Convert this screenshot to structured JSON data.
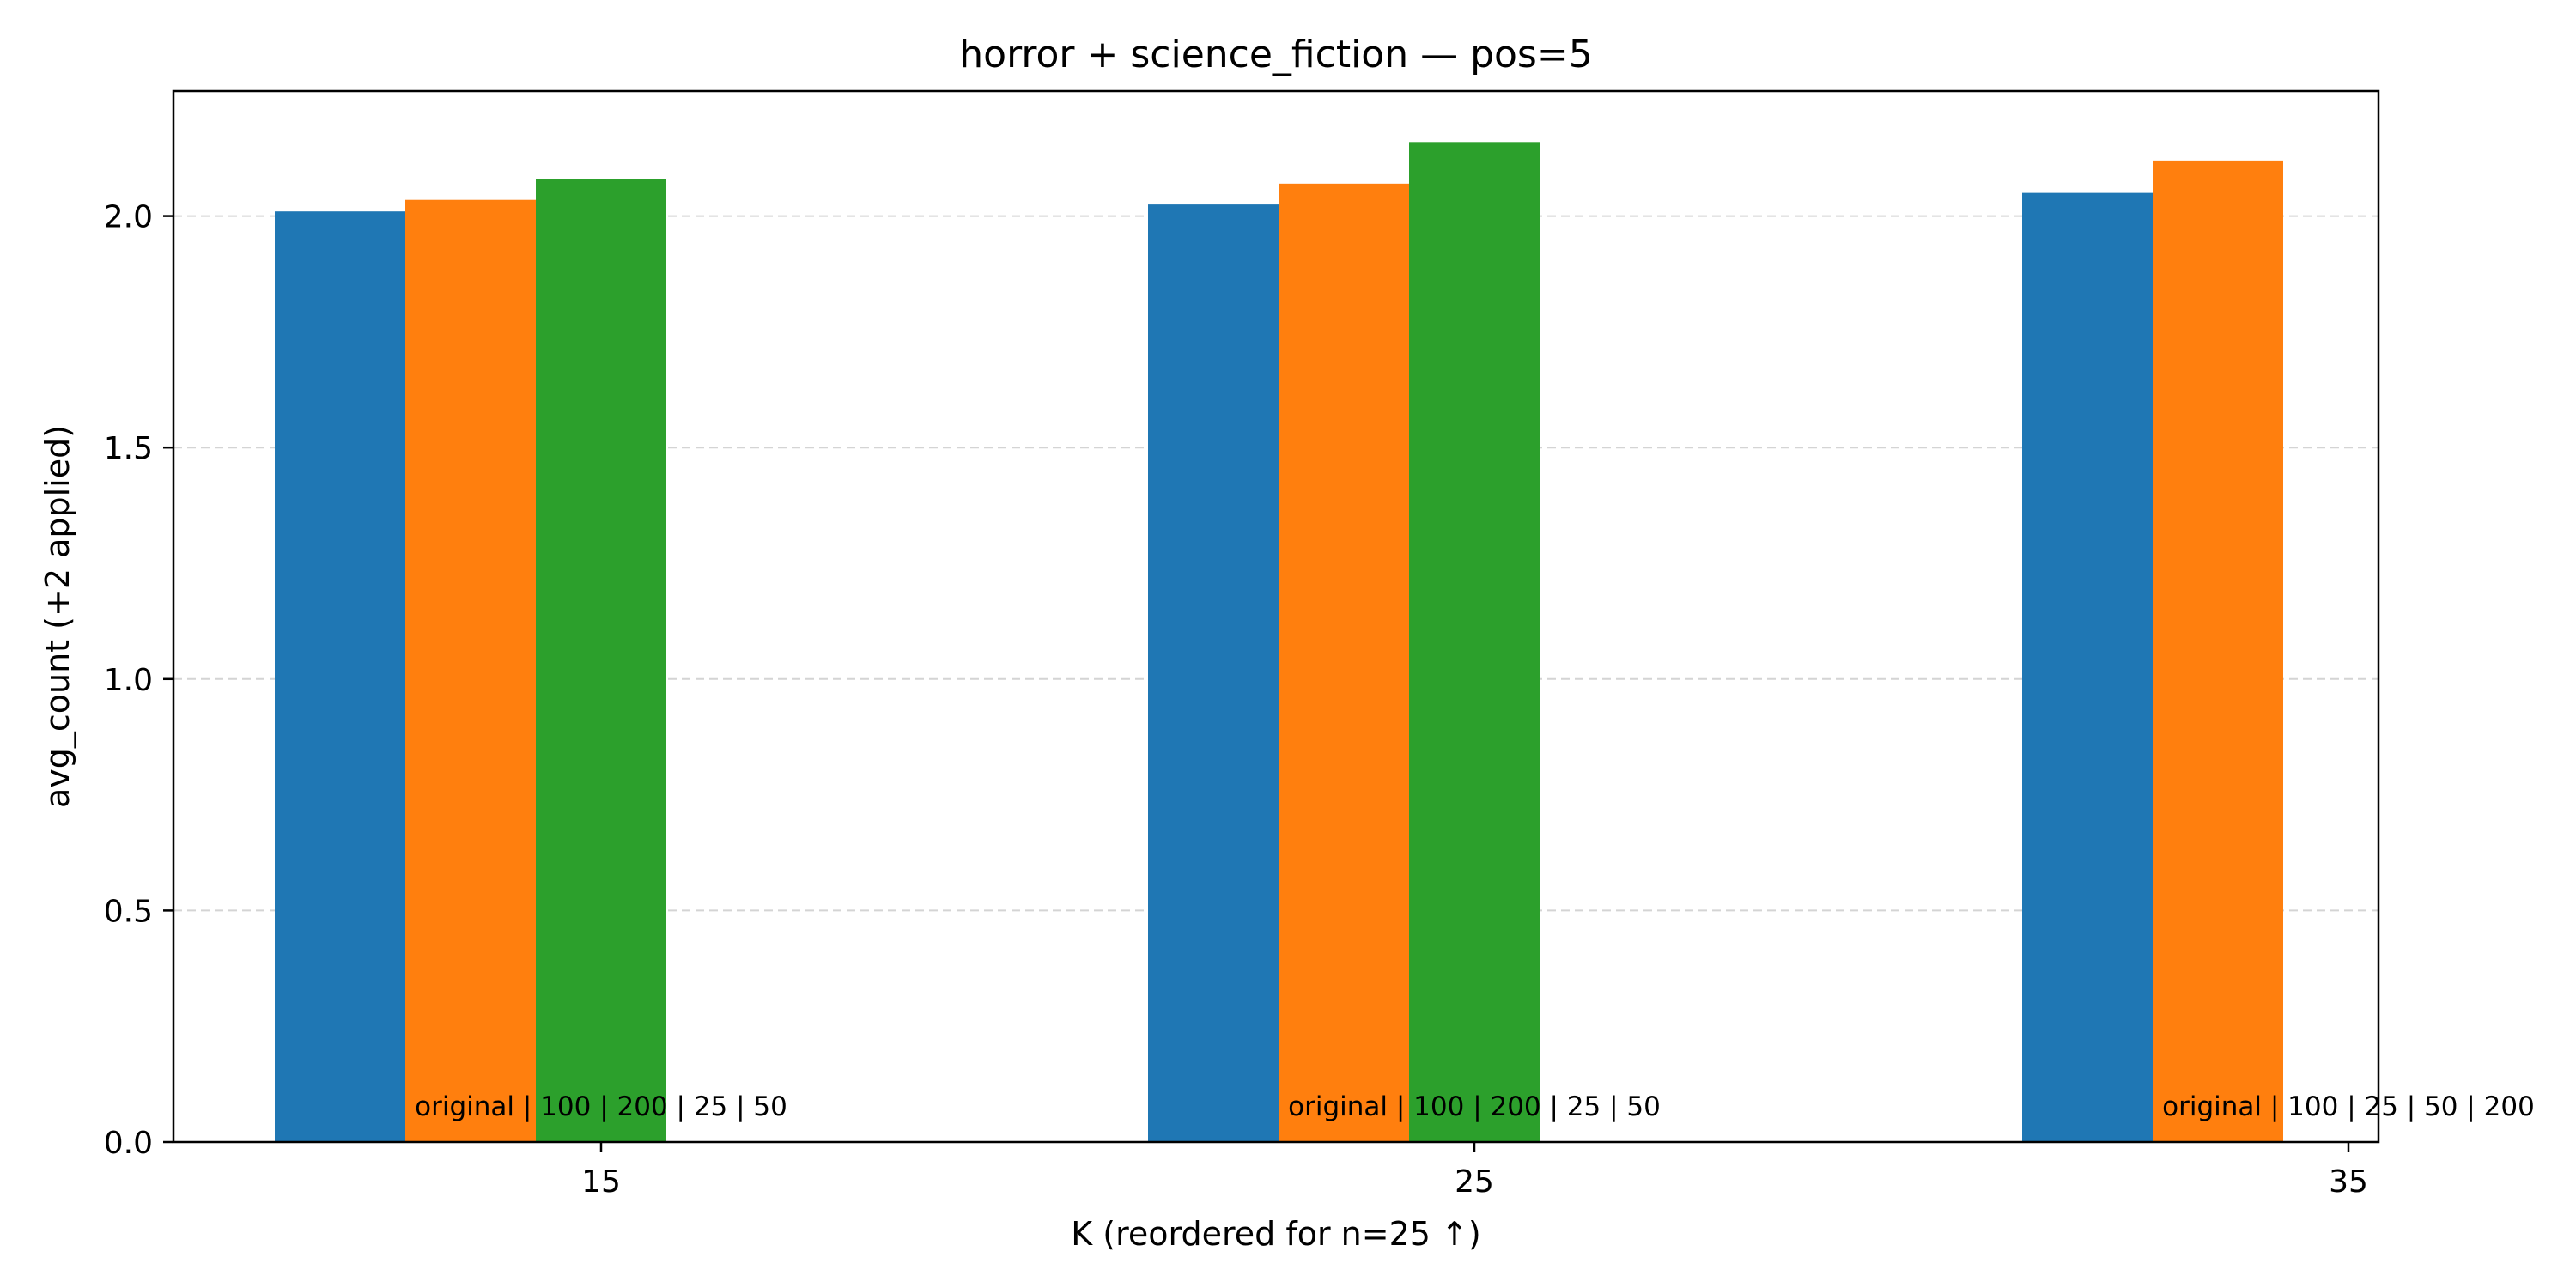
{
  "chart_data": {
    "type": "bar",
    "title": "horror + science_fiction — pos=5",
    "xlabel": "K (reordered for n=25 ↑)",
    "ylabel": "avg_count (+2 applied)",
    "categories": [
      "15",
      "25",
      "35"
    ],
    "ylim": [
      0,
      2.27
    ],
    "yticks": [
      "0.0",
      "0.5",
      "1.0",
      "1.5",
      "2.0"
    ],
    "grid": "y-dashed",
    "group_labels": [
      "original | 100 | 200 | 25 | 50",
      "original | 100 | 200 | 25 | 50",
      "original | 100 | 25 | 50 | 200"
    ],
    "bars": [
      [
        {
          "value": 2.01,
          "color": "#1f77b4"
        },
        {
          "value": 2.035,
          "color": "#ff7f0e"
        },
        {
          "value": 2.08,
          "color": "#2ca02c"
        }
      ],
      [
        {
          "value": 2.025,
          "color": "#1f77b4"
        },
        {
          "value": 2.07,
          "color": "#ff7f0e"
        },
        {
          "value": 2.16,
          "color": "#2ca02c"
        }
      ],
      [
        {
          "value": 2.05,
          "color": "#1f77b4"
        },
        {
          "value": 2.12,
          "color": "#ff7f0e"
        }
      ]
    ]
  }
}
